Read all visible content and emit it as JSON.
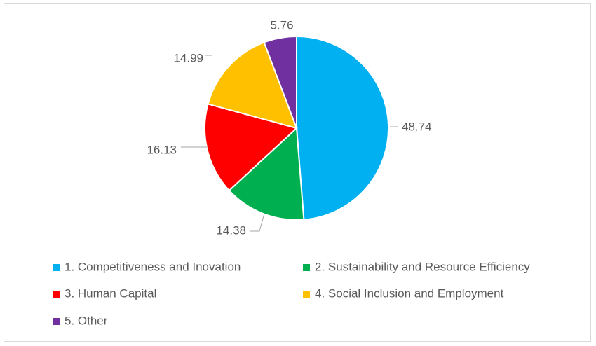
{
  "chart_data": {
    "type": "pie",
    "categories": [
      "1. Competitiveness and Inovation",
      "2. Sustainability and Resource Efficiency",
      "3. Human Capital",
      "4. Social Inclusion and Employment",
      "5. Other"
    ],
    "values": [
      48.74,
      14.38,
      16.13,
      14.99,
      5.76
    ],
    "value_labels": [
      "48.74",
      "14.38",
      "16.13",
      "14.99",
      "5.76"
    ],
    "colors": [
      "#00b0f0",
      "#00b050",
      "#ff0000",
      "#ffc000",
      "#7030a0"
    ],
    "legend_position": "bottom",
    "start_angle": "12 o'clock",
    "direction": "clockwise"
  }
}
